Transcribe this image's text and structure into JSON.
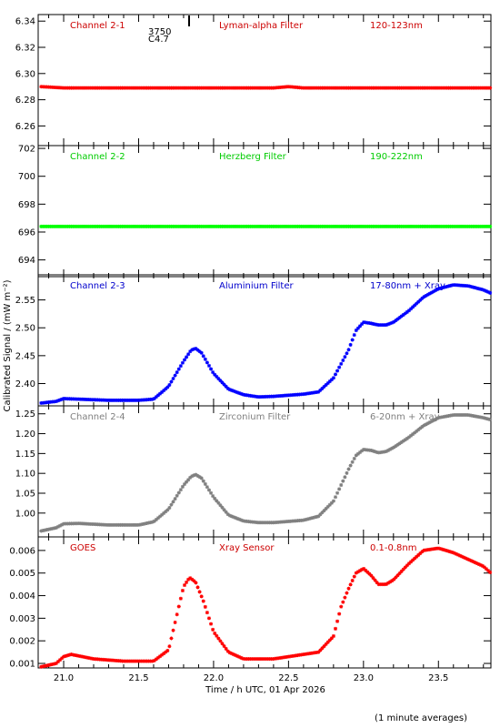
{
  "figure": {
    "xlabel": "Time / h UTC, 01 Apr 2026",
    "ylabel": "Calibrated Signal / (mW m⁻²)",
    "footnote": "(1 minute averages)",
    "marker_text_1": "3750",
    "marker_text_2": "C4.7",
    "xticks": [
      "21.0",
      "21.5",
      "22.0",
      "22.5",
      "23.0",
      "23.5"
    ]
  },
  "chart_data": [
    {
      "type": "scatter",
      "labels": [
        "Channel 2-1",
        "Lyman-alpha Filter",
        "120-123nm"
      ],
      "label_color": "#cc0000",
      "color": "#ff0000",
      "xlim": [
        20.83,
        23.85
      ],
      "ylim": [
        6.245,
        6.345
      ],
      "yticks": [
        "6.26",
        "6.28",
        "6.30",
        "6.32",
        "6.34"
      ],
      "series": [
        {
          "x": [
            20.85,
            21.0,
            21.5,
            22.0,
            22.4,
            22.5,
            22.6,
            23.0,
            23.5,
            23.85
          ],
          "values": [
            6.29,
            6.289,
            6.289,
            6.289,
            6.289,
            6.29,
            6.289,
            6.289,
            6.289,
            6.289
          ]
        }
      ]
    },
    {
      "type": "scatter",
      "labels": [
        "Channel 2-2",
        "Herzberg Filter",
        "190-222nm"
      ],
      "label_color": "#00cc00",
      "color": "#00ff00",
      "xlim": [
        20.83,
        23.85
      ],
      "ylim": [
        692.8,
        702.2
      ],
      "yticks": [
        "694",
        "696",
        "698",
        "700",
        "702"
      ],
      "series": [
        {
          "x": [
            20.85,
            21.5,
            22.0,
            22.5,
            23.0,
            23.5,
            23.85
          ],
          "values": [
            696.4,
            696.4,
            696.4,
            696.4,
            696.4,
            696.4,
            696.4
          ]
        }
      ]
    },
    {
      "type": "scatter",
      "labels": [
        "Channel 2-3",
        "Aluminium Filter",
        "17-80nm + Xray"
      ],
      "label_color": "#0000cc",
      "color": "#0000ff",
      "xlim": [
        20.83,
        23.85
      ],
      "ylim": [
        2.36,
        2.595
      ],
      "yticks": [
        "2.40",
        "2.45",
        "2.50",
        "2.55"
      ],
      "series": [
        {
          "x": [
            20.85,
            20.95,
            21.0,
            21.1,
            21.3,
            21.5,
            21.6,
            21.7,
            21.8,
            21.85,
            21.88,
            21.92,
            22.0,
            22.1,
            22.2,
            22.3,
            22.4,
            22.5,
            22.6,
            22.7,
            22.8,
            22.9,
            22.95,
            23.0,
            23.05,
            23.1,
            23.15,
            23.2,
            23.3,
            23.4,
            23.5,
            23.6,
            23.7,
            23.8,
            23.85
          ],
          "values": [
            2.365,
            2.368,
            2.373,
            2.372,
            2.37,
            2.37,
            2.372,
            2.395,
            2.44,
            2.46,
            2.463,
            2.455,
            2.418,
            2.39,
            2.38,
            2.376,
            2.377,
            2.379,
            2.381,
            2.385,
            2.41,
            2.46,
            2.495,
            2.51,
            2.508,
            2.505,
            2.505,
            2.51,
            2.53,
            2.555,
            2.57,
            2.577,
            2.575,
            2.568,
            2.562
          ]
        }
      ]
    },
    {
      "type": "scatter",
      "labels": [
        "Channel 2-4",
        "Zirconium Filter",
        "6-20nm + Xray"
      ],
      "label_color": "#808080",
      "color": "#808080",
      "xlim": [
        20.83,
        23.85
      ],
      "ylim": [
        0.94,
        1.27
      ],
      "yticks": [
        "1.00",
        "1.05",
        "1.10",
        "1.15",
        "1.20",
        "1.25"
      ],
      "series": [
        {
          "x": [
            20.85,
            20.95,
            21.0,
            21.1,
            21.3,
            21.5,
            21.6,
            21.7,
            21.8,
            21.85,
            21.88,
            21.92,
            22.0,
            22.1,
            22.2,
            22.3,
            22.4,
            22.5,
            22.6,
            22.7,
            22.8,
            22.9,
            22.95,
            23.0,
            23.05,
            23.1,
            23.15,
            23.2,
            23.3,
            23.4,
            23.5,
            23.6,
            23.7,
            23.8,
            23.85
          ],
          "values": [
            0.955,
            0.963,
            0.973,
            0.974,
            0.97,
            0.97,
            0.978,
            1.01,
            1.07,
            1.092,
            1.097,
            1.088,
            1.04,
            0.995,
            0.98,
            0.976,
            0.976,
            0.979,
            0.982,
            0.992,
            1.03,
            1.11,
            1.145,
            1.16,
            1.158,
            1.152,
            1.155,
            1.165,
            1.19,
            1.22,
            1.24,
            1.247,
            1.247,
            1.24,
            1.235
          ]
        }
      ]
    },
    {
      "type": "scatter",
      "labels": [
        "GOES",
        "Xray Sensor",
        "0.1-0.8nm"
      ],
      "label_color": "#cc0000",
      "color": "#ff0000",
      "xlim": [
        20.83,
        23.85
      ],
      "ylim": [
        0.0008,
        0.0066
      ],
      "yticks": [
        "0.001",
        "0.002",
        "0.003",
        "0.004",
        "0.005",
        "0.006"
      ],
      "series": [
        {
          "x": [
            20.85,
            20.95,
            21.0,
            21.05,
            21.2,
            21.4,
            21.6,
            21.7,
            21.75,
            21.8,
            21.84,
            21.88,
            21.93,
            22.0,
            22.1,
            22.2,
            22.3,
            22.4,
            22.5,
            22.6,
            22.7,
            22.8,
            22.85,
            22.9,
            22.95,
            23.0,
            23.05,
            23.1,
            23.15,
            23.2,
            23.3,
            23.4,
            23.5,
            23.6,
            23.7,
            23.8,
            23.85
          ],
          "values": [
            0.00085,
            0.001,
            0.0013,
            0.0014,
            0.0012,
            0.0011,
            0.0011,
            0.0016,
            0.003,
            0.0044,
            0.0048,
            0.0046,
            0.0038,
            0.0024,
            0.0015,
            0.0012,
            0.0012,
            0.0012,
            0.0013,
            0.0014,
            0.0015,
            0.0022,
            0.0035,
            0.0043,
            0.005,
            0.0052,
            0.0049,
            0.0045,
            0.0045,
            0.0047,
            0.0054,
            0.006,
            0.0061,
            0.0059,
            0.0056,
            0.0053,
            0.005
          ]
        }
      ]
    }
  ]
}
